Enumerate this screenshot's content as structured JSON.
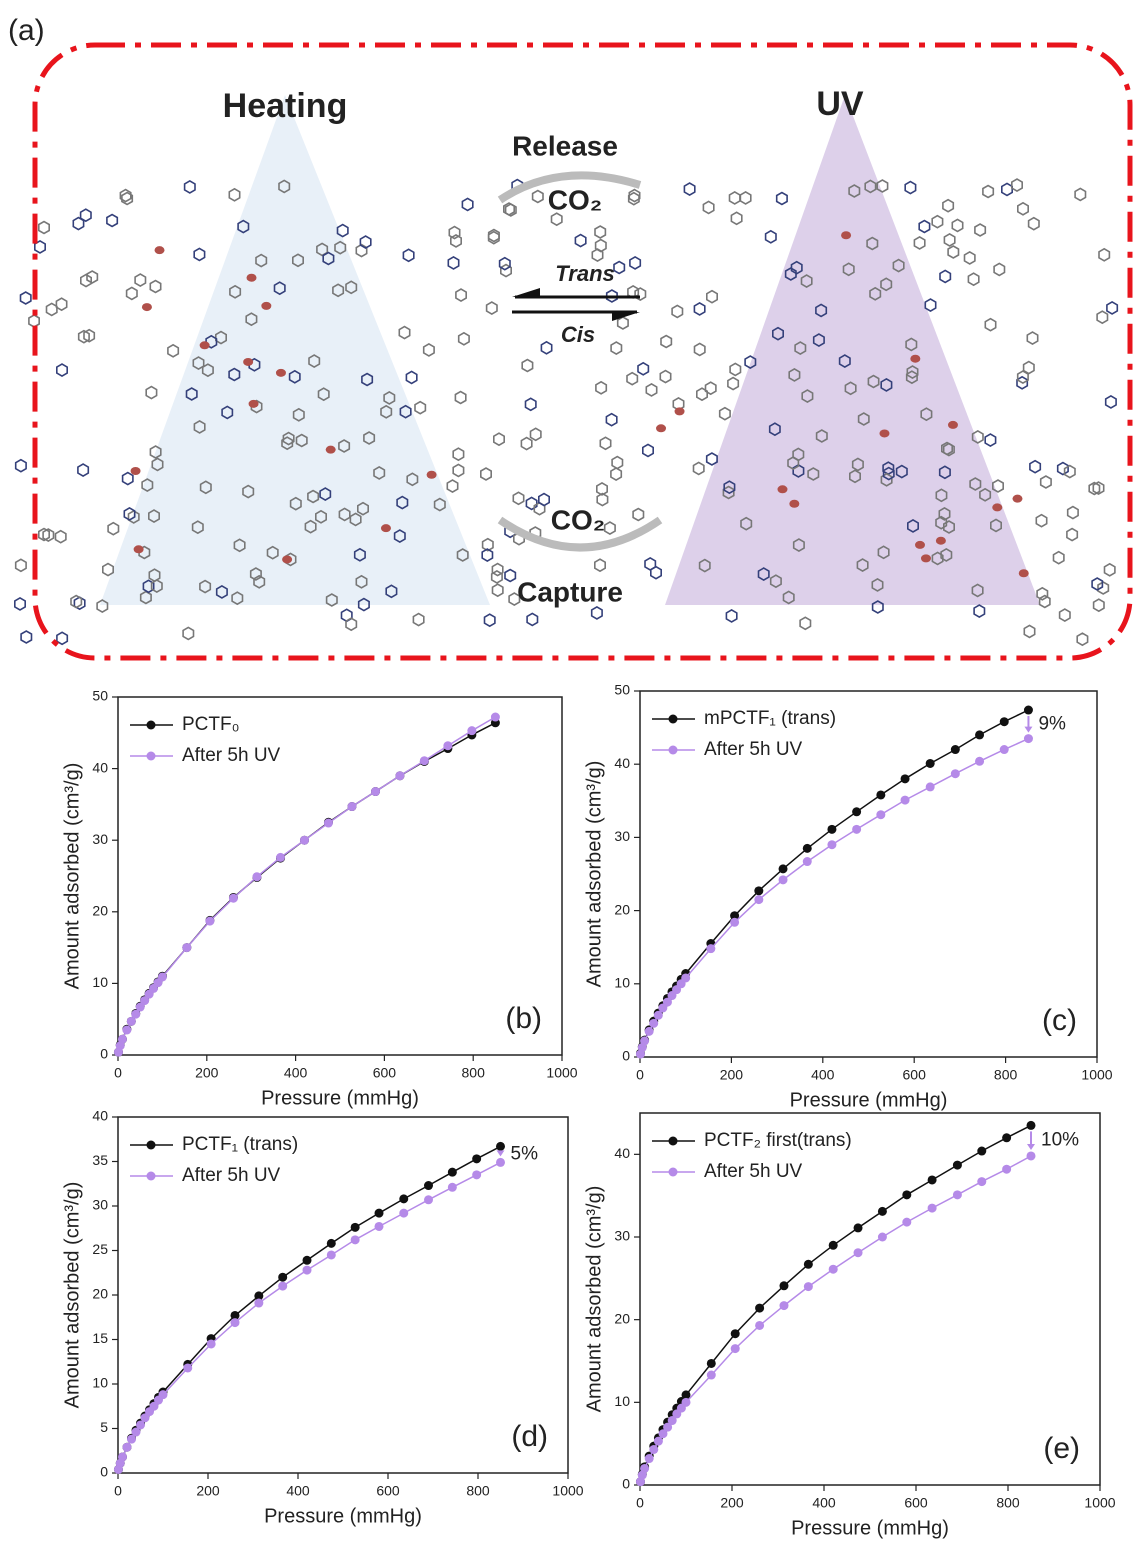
{
  "panel_a": {
    "label": "(a)",
    "left_title": "Heating",
    "right_title": "UV",
    "top_arrow": "Release",
    "top_gas": "CO₂",
    "forward": "Trans",
    "backward": "Cis",
    "bottom_gas": "CO₂",
    "bottom_arrow": "Capture"
  },
  "chart_data": [
    {
      "type": "line",
      "panel_label": "(b)",
      "xlabel": "Pressure (mmHg)",
      "ylabel": "Amount adsorbed (cm³/g)",
      "legend": "upper left",
      "x": [
        1,
        5,
        10,
        20,
        30,
        40,
        50,
        60,
        70,
        80,
        90,
        100,
        155,
        207,
        260,
        313,
        366,
        420,
        474,
        527,
        580,
        635,
        690,
        743,
        797,
        850
      ],
      "xlim": [
        0,
        1000
      ],
      "xticks": [
        0,
        200,
        400,
        600,
        800,
        1000
      ],
      "ylim": [
        0,
        50
      ],
      "yticks": [
        0,
        10,
        20,
        30,
        40,
        50
      ],
      "series": [
        {
          "name": "PCTF₀",
          "color": "#111111",
          "values": [
            0.4,
            1.4,
            2.2,
            3.6,
            4.7,
            5.8,
            6.8,
            7.7,
            8.6,
            9.4,
            10.2,
            11,
            15,
            18.8,
            22,
            24.8,
            27.5,
            30,
            32.5,
            34.7,
            36.8,
            39,
            41,
            42.8,
            44.7,
            46.4
          ]
        },
        {
          "name": "After 5h UV",
          "color": "#b58ae8",
          "values": [
            0.4,
            1.3,
            2.2,
            3.5,
            4.7,
            5.7,
            6.7,
            7.6,
            8.5,
            9.3,
            10.1,
            10.9,
            15,
            18.7,
            21.9,
            24.9,
            27.6,
            30,
            32.4,
            34.7,
            36.8,
            39,
            41.1,
            43.2,
            45.3,
            47.2
          ]
        }
      ]
    },
    {
      "type": "line",
      "panel_label": "(c)",
      "xlabel": "Pressure (mmHg)",
      "ylabel": "Amount adsorbed (cm³/g)",
      "legend": "upper left",
      "annotation": "9%",
      "x": [
        1,
        5,
        10,
        20,
        30,
        40,
        50,
        60,
        70,
        80,
        90,
        100,
        155,
        207,
        260,
        313,
        366,
        420,
        474,
        527,
        580,
        635,
        690,
        743,
        797,
        850
      ],
      "xlim": [
        0,
        1000
      ],
      "xticks": [
        0,
        200,
        400,
        600,
        800,
        1000
      ],
      "ylim": [
        0,
        50
      ],
      "yticks": [
        0,
        10,
        20,
        30,
        40,
        50
      ],
      "series": [
        {
          "name": "mPCTF₁ (trans)",
          "color": "#111111",
          "values": [
            0.5,
            1.4,
            2.3,
            3.7,
            4.9,
            6.0,
            7.0,
            8.0,
            8.9,
            9.7,
            10.6,
            11.4,
            15.5,
            19.3,
            22.7,
            25.7,
            28.5,
            31.1,
            33.5,
            35.8,
            38,
            40.1,
            42,
            44,
            45.8,
            47.4
          ]
        },
        {
          "name": "After 5h UV",
          "color": "#b58ae8",
          "values": [
            0.4,
            1.3,
            2.2,
            3.5,
            4.6,
            5.7,
            6.7,
            7.5,
            8.4,
            9.2,
            10.0,
            10.8,
            14.8,
            18.4,
            21.5,
            24.2,
            26.7,
            29,
            31.1,
            33.1,
            35.1,
            36.9,
            38.7,
            40.4,
            42,
            43.5
          ]
        }
      ]
    },
    {
      "type": "line",
      "panel_label": "(d)",
      "xlabel": "Pressure (mmHg)",
      "ylabel": "Amount adsorbed (cm³/g)",
      "legend": "upper left",
      "annotation": "5%",
      "x": [
        1,
        5,
        10,
        20,
        30,
        40,
        50,
        60,
        70,
        80,
        90,
        100,
        155,
        207,
        260,
        313,
        366,
        420,
        474,
        527,
        580,
        635,
        690,
        743,
        797,
        850
      ],
      "xlim": [
        0,
        1000
      ],
      "xticks": [
        0,
        200,
        400,
        600,
        800,
        1000
      ],
      "ylim": [
        0,
        40
      ],
      "yticks": [
        0,
        5,
        10,
        15,
        20,
        25,
        30,
        35,
        40
      ],
      "series": [
        {
          "name": "PCTF₁ (trans)",
          "color": "#111111",
          "values": [
            0.4,
            1.1,
            1.8,
            2.9,
            3.9,
            4.8,
            5.6,
            6.4,
            7.1,
            7.8,
            8.5,
            9.1,
            12.2,
            15.1,
            17.7,
            19.9,
            22,
            23.9,
            25.8,
            27.6,
            29.2,
            30.8,
            32.3,
            33.8,
            35.3,
            36.7
          ]
        },
        {
          "name": "After 5h UV",
          "color": "#b58ae8",
          "values": [
            0.4,
            1.1,
            1.8,
            2.9,
            3.8,
            4.6,
            5.4,
            6.2,
            6.9,
            7.5,
            8.2,
            8.8,
            11.8,
            14.5,
            16.9,
            19.1,
            21,
            22.8,
            24.5,
            26.2,
            27.7,
            29.2,
            30.7,
            32.1,
            33.5,
            34.9
          ]
        }
      ]
    },
    {
      "type": "line",
      "panel_label": "(e)",
      "xlabel": "Pressure (mmHg)",
      "ylabel": "Amount adsorbed (cm³/g)",
      "legend": "upper left",
      "annotation": "10%",
      "x": [
        1,
        5,
        10,
        20,
        30,
        40,
        50,
        60,
        70,
        80,
        90,
        100,
        155,
        207,
        260,
        313,
        366,
        420,
        474,
        527,
        580,
        635,
        690,
        743,
        797,
        850
      ],
      "xlim": [
        0,
        1000
      ],
      "xticks": [
        0,
        200,
        400,
        600,
        800,
        1000
      ],
      "ylim": [
        0,
        45
      ],
      "yticks": [
        0,
        10,
        20,
        30,
        40
      ],
      "series": [
        {
          "name": "PCTF₂ first(trans)",
          "color": "#111111",
          "values": [
            0.4,
            1.3,
            2.2,
            3.5,
            4.7,
            5.7,
            6.7,
            7.6,
            8.5,
            9.3,
            10.1,
            10.9,
            14.7,
            18.3,
            21.4,
            24.1,
            26.7,
            29,
            31.1,
            33.1,
            35.1,
            36.9,
            38.7,
            40.4,
            42,
            43.5
          ]
        },
        {
          "name": "After 5h UV",
          "color": "#b58ae8",
          "values": [
            0.4,
            1.2,
            2.0,
            3.2,
            4.3,
            5.3,
            6.2,
            7.0,
            7.8,
            8.6,
            9.3,
            10.0,
            13.3,
            16.5,
            19.3,
            21.7,
            24,
            26.1,
            28.1,
            30,
            31.8,
            33.5,
            35.1,
            36.7,
            38.2,
            39.8
          ]
        }
      ]
    }
  ]
}
